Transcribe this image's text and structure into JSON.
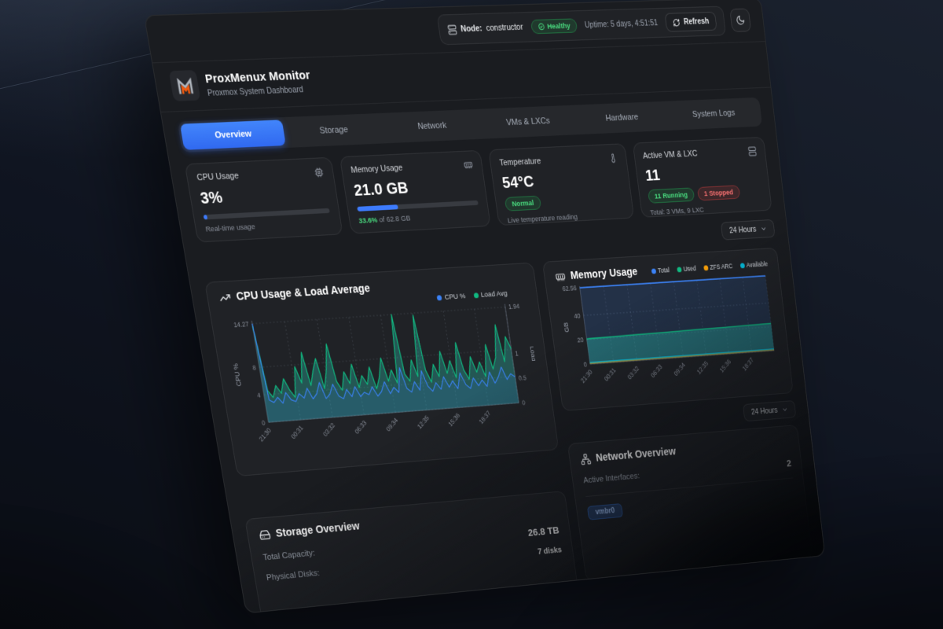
{
  "topbar": {
    "node_label": "Node:",
    "node_value": "constructor",
    "health_label": "Healthy",
    "uptime": "Uptime: 5 days, 4:51:51",
    "refresh_label": "Refresh"
  },
  "brand": {
    "title": "ProxMenux Monitor",
    "subtitle": "Proxmox System Dashboard"
  },
  "tabs": [
    "Overview",
    "Storage",
    "Network",
    "VMs & LXCs",
    "Hardware",
    "System Logs"
  ],
  "stats": {
    "cpu": {
      "title": "CPU Usage",
      "value": "3%",
      "percent": 3,
      "footer": "Real-time usage"
    },
    "memory": {
      "title": "Memory Usage",
      "value": "21.0 GB",
      "percent": 33.6,
      "footer_pct": "33.6%",
      "footer_rest": " of 62.8 GB"
    },
    "temperature": {
      "title": "Temperature",
      "value": "54°C",
      "badge": "Normal",
      "footer": "Live temperature reading"
    },
    "vms": {
      "title": "Active VM & LXC",
      "value": "11",
      "running": "11 Running",
      "stopped": "1 Stopped",
      "footer": "Total: 3 VMs, 9 LXC"
    }
  },
  "time_range": {
    "selected": "24 Hours"
  },
  "sections": {
    "storage": {
      "title": "Storage Overview",
      "rows": [
        {
          "label": "Total Capacity:",
          "value": "26.8 TB"
        },
        {
          "label": "Physical Disks:",
          "value": "7 disks"
        }
      ]
    },
    "network": {
      "title": "Network Overview",
      "rows": [
        {
          "label": "Active Interfaces:",
          "value": "2"
        }
      ],
      "interfaces": [
        "vmbr0"
      ]
    }
  },
  "chart_data": [
    {
      "type": "line",
      "title": "CPU Usage & Load Average",
      "legend": [
        {
          "name": "CPU %",
          "color": "#3b82f6"
        },
        {
          "name": "Load Avg",
          "color": "#10b981"
        }
      ],
      "x_labels": [
        "21:30",
        "00:31",
        "03:32",
        "06:33",
        "09:34",
        "12:35",
        "15:36",
        "18:37"
      ],
      "y_left": {
        "label": "CPU %",
        "ticks": [
          0,
          4,
          8
        ],
        "max": 14.27
      },
      "y_right": {
        "label": "Load",
        "ticks": [
          0,
          0.5,
          1
        ],
        "max": 1.94
      },
      "grid": "dotted",
      "legend_position": "top-right",
      "series": [
        {
          "name": "CPU %",
          "axis": "left",
          "color": "#3b82f6",
          "values": [
            14.27,
            3.2,
            2.8,
            3.5,
            2.6,
            4.1,
            3.0,
            2.7,
            3.8,
            3.1,
            4.5,
            2.9,
            3.6,
            5.2,
            2.8,
            3.4,
            4.8,
            3.0,
            2.6,
            3.9,
            2.8,
            4.2,
            2.7,
            3.3,
            2.9,
            4.0,
            2.6,
            3.2,
            4.6,
            2.8,
            3.7,
            2.9,
            6.5,
            3.4,
            2.8,
            4.3,
            3.0,
            5.8,
            3.5,
            2.7,
            3.9,
            2.9,
            4.7,
            3.1,
            4.0,
            2.8,
            5.1,
            3.3,
            2.7,
            4.2,
            3.0,
            3.8,
            2.8,
            4.9,
            3.2,
            4.1,
            5.5,
            3.6,
            4.4,
            3.9
          ]
        },
        {
          "name": "Load Avg",
          "axis": "right",
          "color": "#10b981",
          "values": [
            1.9,
            0.62,
            0.48,
            0.71,
            0.55,
            0.83,
            0.6,
            0.45,
            1.05,
            0.72,
            1.32,
            0.66,
            0.95,
            1.18,
            0.58,
            0.92,
            1.45,
            0.7,
            0.52,
            0.88,
            0.64,
            1.02,
            0.55,
            0.78,
            0.6,
            0.94,
            0.5,
            0.72,
            1.1,
            0.63,
            0.85,
            0.58,
            1.94,
            0.75,
            0.6,
            1.02,
            0.68,
            1.9,
            0.8,
            0.55,
            0.9,
            0.65,
            1.15,
            0.7,
            0.95,
            0.6,
            1.3,
            0.75,
            0.55,
            1.0,
            0.68,
            0.88,
            0.58,
            1.22,
            0.72,
            0.95,
            1.6,
            0.85,
            1.35,
            1.1
          ]
        }
      ]
    },
    {
      "type": "area",
      "title": "Memory Usage",
      "legend": [
        {
          "name": "Total",
          "color": "#3b82f6"
        },
        {
          "name": "Used",
          "color": "#10b981"
        },
        {
          "name": "ZFS ARC",
          "color": "#f59e0b"
        },
        {
          "name": "Available",
          "color": "#06b6d4"
        }
      ],
      "x_labels": [
        "21:30",
        "00:31",
        "03:32",
        "06:33",
        "09:34",
        "12:35",
        "15:36",
        "18:37"
      ],
      "y": {
        "label": "GB",
        "ticks": [
          0,
          20,
          40
        ],
        "max": 62.56
      },
      "grid": "dotted",
      "legend_position": "top-right",
      "series": [
        {
          "name": "Total",
          "color": "#3b82f6",
          "values": [
            62.56,
            62.56,
            62.56,
            62.56,
            62.56,
            62.56,
            62.56,
            62.56,
            62.56
          ]
        },
        {
          "name": "Used",
          "color": "#10b981",
          "values": [
            20.8,
            21.0,
            21.3,
            21.5,
            21.8,
            22.0,
            22.3,
            22.6,
            22.9
          ]
        },
        {
          "name": "ZFS ARC",
          "color": "#f59e0b",
          "values": [
            0.6,
            0.6,
            0.6,
            0.6,
            0.6,
            0.6,
            0.6,
            0.6,
            0.6
          ]
        },
        {
          "name": "Available",
          "color": "#06b6d4",
          "values": [
            1.4,
            1.4,
            1.4,
            1.4,
            1.4,
            1.4,
            1.4,
            1.4,
            1.4
          ]
        }
      ]
    }
  ]
}
